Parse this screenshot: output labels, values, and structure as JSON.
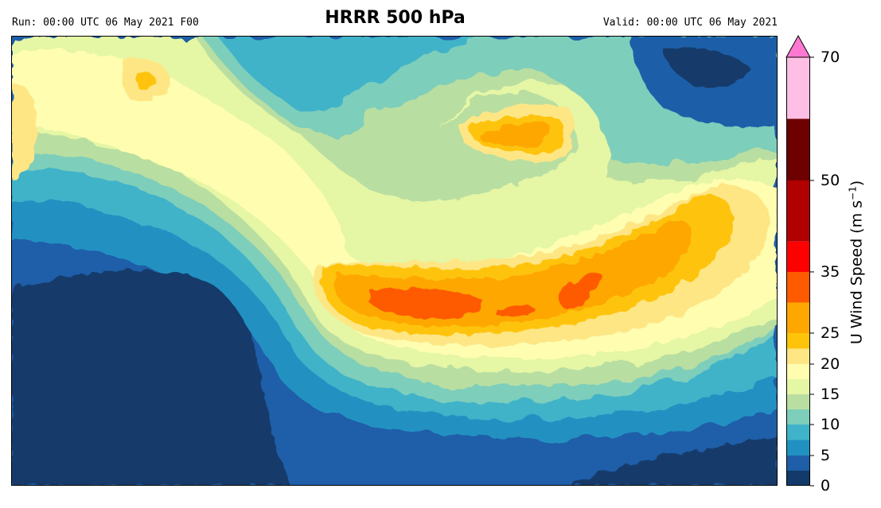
{
  "header": {
    "title": "HRRR 500 hPa",
    "run_text": "Run: 00:00 UTC 06 May 2021 F00",
    "valid_text": "Valid: 00:00 UTC 06 May 2021"
  },
  "colorbar": {
    "label_main": "U Wind Speed (m s",
    "label_sup": "−1",
    "label_end": ")",
    "min": 0,
    "max": 70,
    "extend": "max",
    "extend_color": "#ff78d2",
    "ticks": [
      {
        "value": 0,
        "label": "0"
      },
      {
        "value": 5,
        "label": "5"
      },
      {
        "value": 10,
        "label": "10"
      },
      {
        "value": 15,
        "label": "15"
      },
      {
        "value": 20,
        "label": "20"
      },
      {
        "value": 25,
        "label": "25"
      },
      {
        "value": 35,
        "label": "35"
      },
      {
        "value": 50,
        "label": "50"
      },
      {
        "value": 70,
        "label": "70"
      }
    ],
    "bins": [
      {
        "from": 0,
        "to": 2.5,
        "color": "#123a6b"
      },
      {
        "from": 2.5,
        "to": 5,
        "color": "#1f5ea8"
      },
      {
        "from": 5,
        "to": 7.5,
        "color": "#2191c2"
      },
      {
        "from": 7.5,
        "to": 10,
        "color": "#3fb3c9"
      },
      {
        "from": 10,
        "to": 12.5,
        "color": "#7dcebb"
      },
      {
        "from": 12.5,
        "to": 15,
        "color": "#b9dea1"
      },
      {
        "from": 15,
        "to": 17.5,
        "color": "#e5f6a5"
      },
      {
        "from": 17.5,
        "to": 20,
        "color": "#fefdb0"
      },
      {
        "from": 20,
        "to": 22.5,
        "color": "#fee685"
      },
      {
        "from": 22.5,
        "to": 25,
        "color": "#fec40a"
      },
      {
        "from": 25,
        "to": 30,
        "color": "#fea700"
      },
      {
        "from": 30,
        "to": 35,
        "color": "#fe5a00"
      },
      {
        "from": 35,
        "to": 40,
        "color": "#fe0000"
      },
      {
        "from": 40,
        "to": 50,
        "color": "#b00000"
      },
      {
        "from": 50,
        "to": 60,
        "color": "#6e0000"
      },
      {
        "from": 60,
        "to": 70,
        "color": "#ffbfe5"
      }
    ]
  }
}
